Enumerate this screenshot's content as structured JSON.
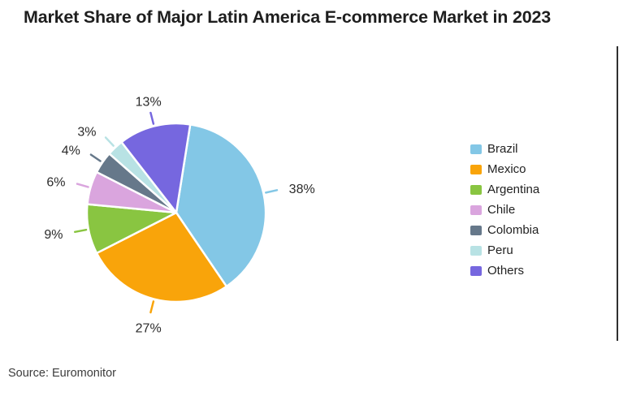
{
  "chart_data": {
    "type": "pie",
    "title": "Market Share of Major Latin America E-commerce Market in 2023",
    "source_note": "Source: Euromonitor",
    "categories": [
      "Brazil",
      "Mexico",
      "Argentina",
      "Chile",
      "Colombia",
      "Peru",
      "Others"
    ],
    "values": [
      38,
      27,
      9,
      6,
      4,
      3,
      13
    ],
    "labels": [
      "38%",
      "27%",
      "9%",
      "6%",
      "4%",
      "3%",
      "13%"
    ],
    "colors": [
      "#83C7E6",
      "#F9A40A",
      "#89C541",
      "#DAA5DE",
      "#66788A",
      "#B8E2E4",
      "#7667DF"
    ],
    "legend_position": "right",
    "direction": "clockwise",
    "start_angle_deg": -81,
    "slice_gap_color": "#ffffff",
    "label_color": "#2b2b2b"
  }
}
